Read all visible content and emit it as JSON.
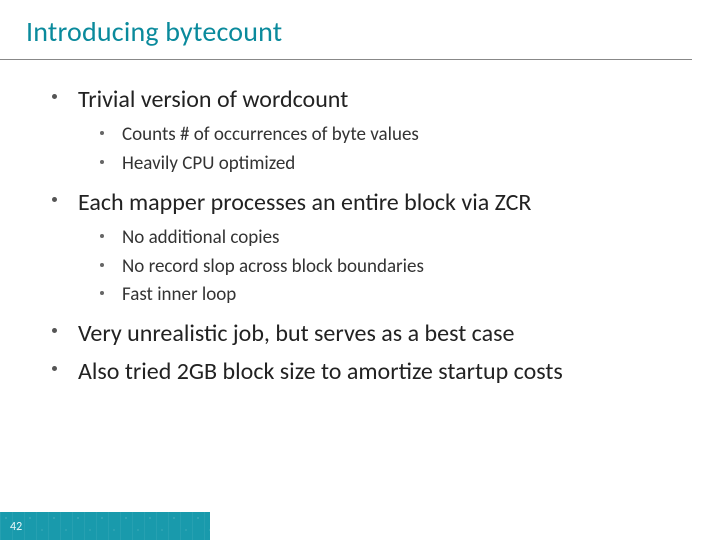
{
  "title": "Introducing bytecount",
  "title_color": "#0a8a9c",
  "title_fontsize": 28,
  "body_color": "#222222",
  "lvl1_fontsize": 24,
  "lvl2_fontsize": 19,
  "bullet_color": "#555555",
  "divider_color": "#888888",
  "background_color": "#ffffff",
  "footer_color": "#0d95a8",
  "page_number": "42",
  "bullets": [
    {
      "text": "Trivial version of wordcount",
      "sub": [
        "Counts # of occurrences of byte values",
        "Heavily CPU optimized"
      ]
    },
    {
      "text": "Each mapper processes an entire block via ZCR",
      "sub": [
        "No additional copies",
        "No record slop across block boundaries",
        "Fast inner loop"
      ]
    },
    {
      "text": "Very unrealistic job, but serves as a best case",
      "sub": []
    },
    {
      "text": "Also tried 2GB block size to amortize startup costs",
      "sub": []
    }
  ]
}
